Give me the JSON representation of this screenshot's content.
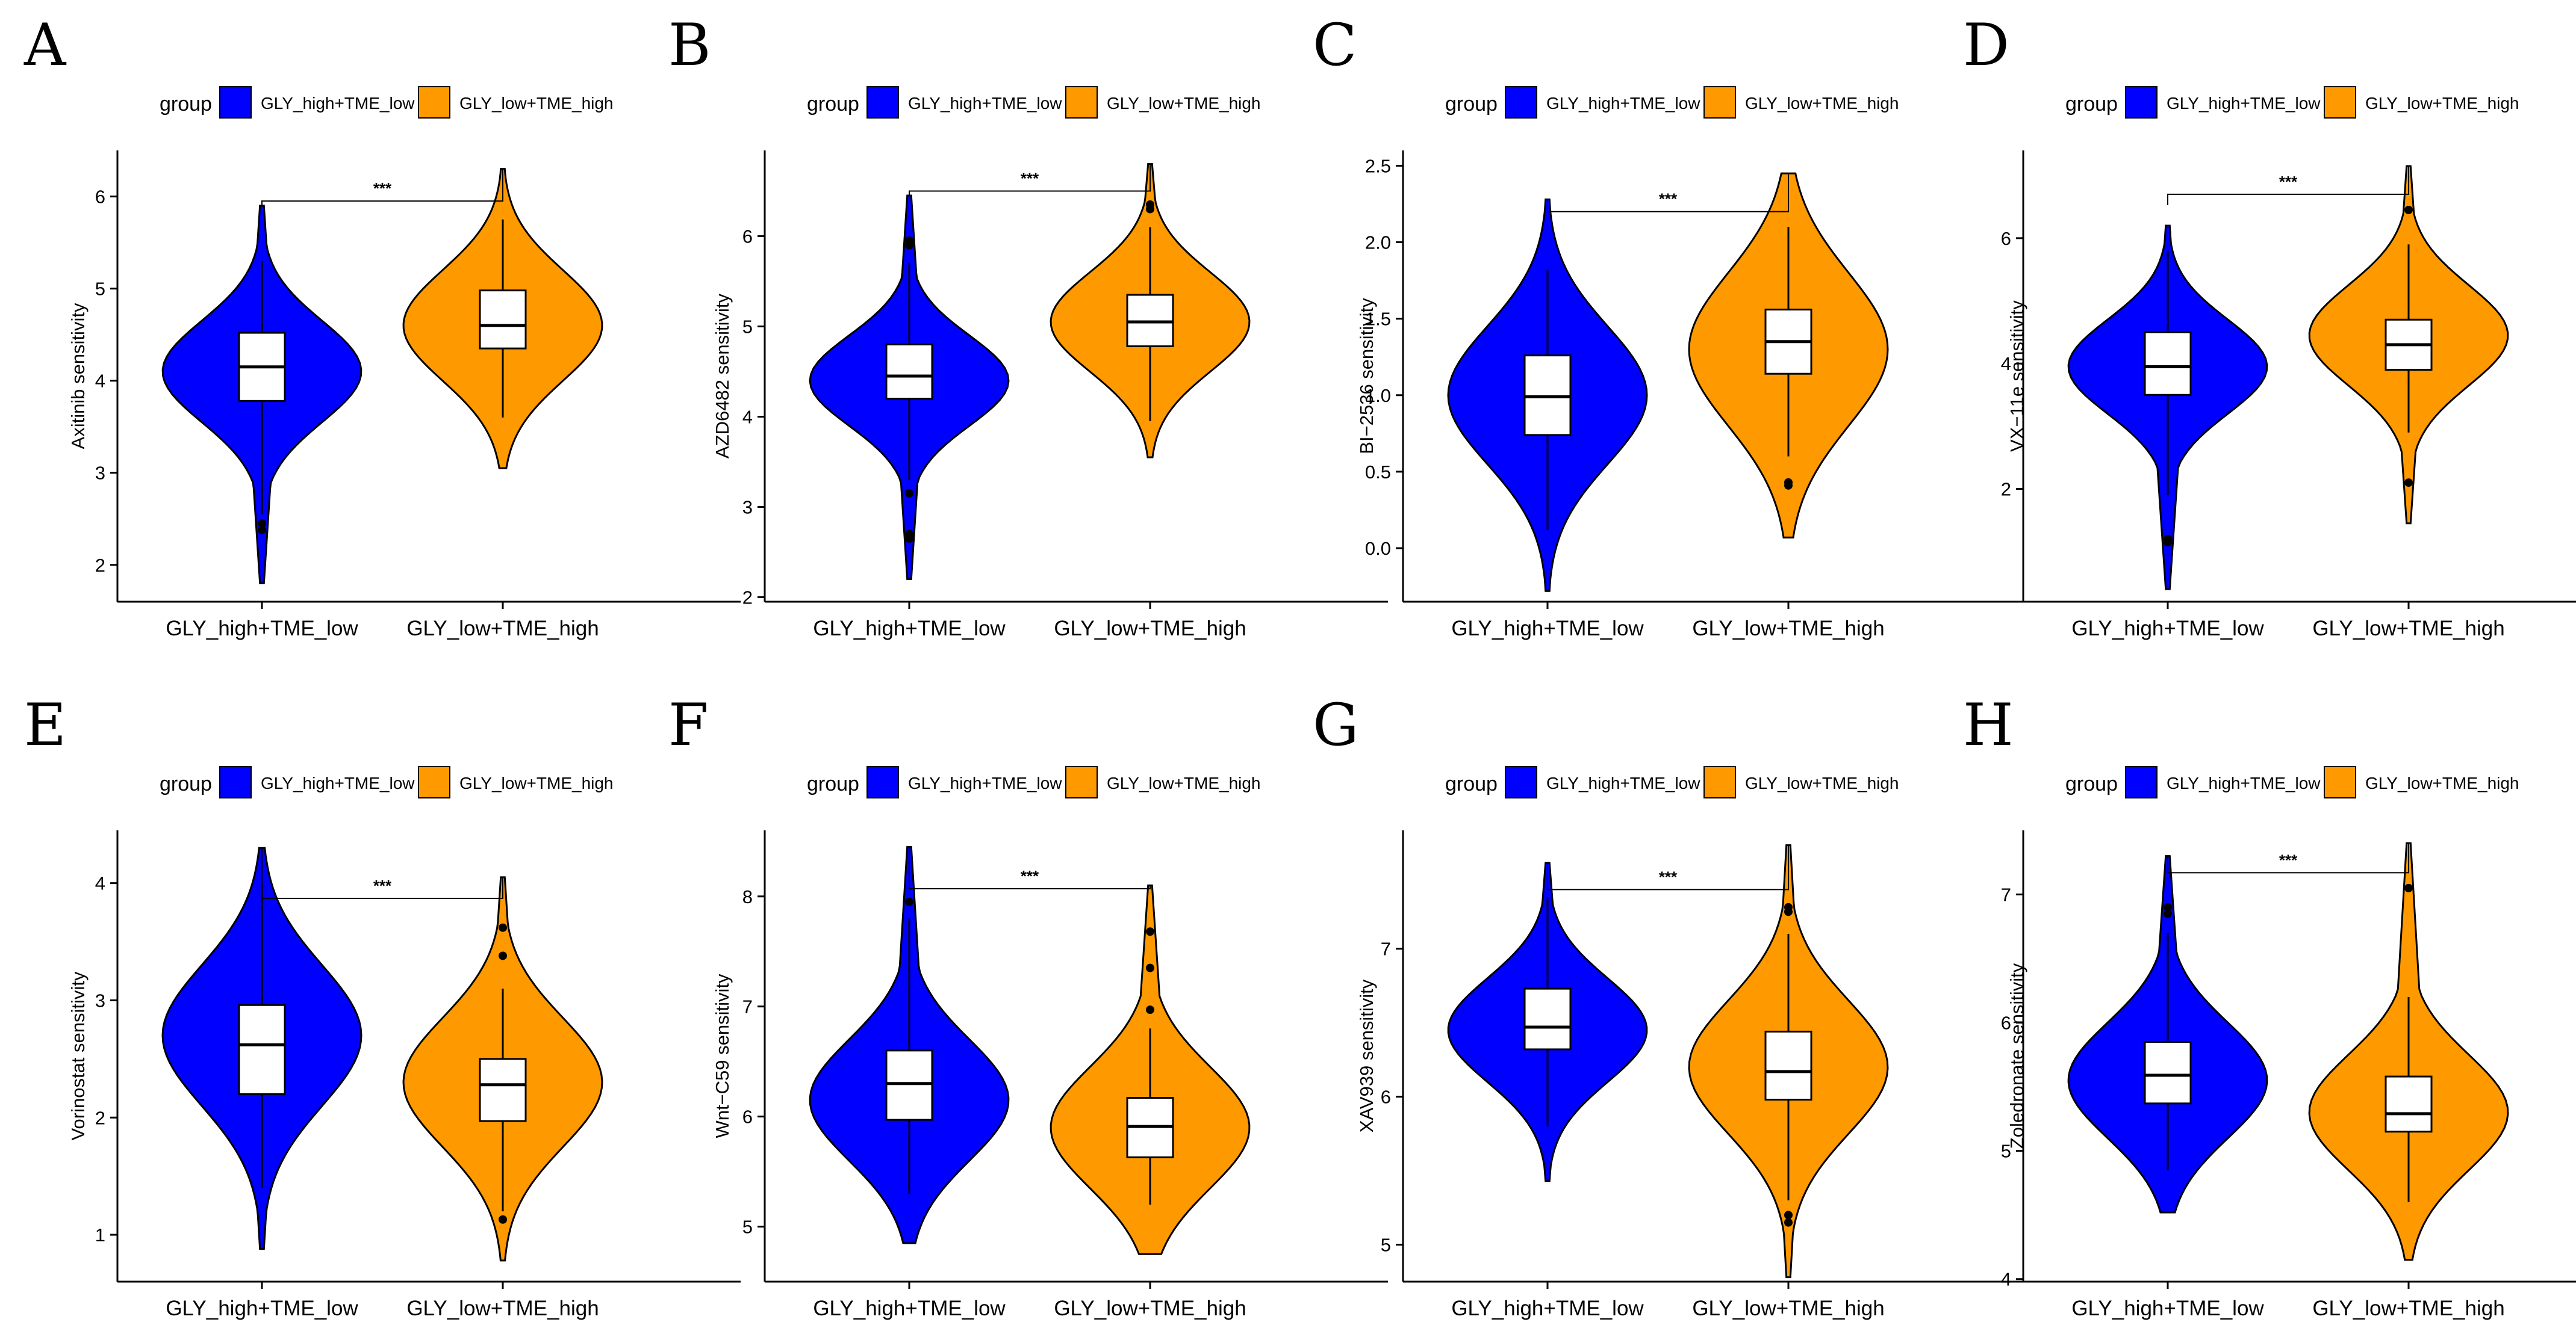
{
  "colors": {
    "GLY_high+TME_low": "#0000ff",
    "GLY_low+TME_high": "#ff9900"
  },
  "chart_data": [
    {
      "panel": "A",
      "type": "violin",
      "categories": [
        "GLY_high+TME_low",
        "GLY_low+TME_high"
      ],
      "legend": {
        "title": "group",
        "entries": [
          "GLY_high+TME_low",
          "GLY_low+TME_high"
        ],
        "position": "top"
      },
      "ylabel": "Axitinib sensitivity",
      "ylim": [
        1.6,
        6.5
      ],
      "yticks": [
        2,
        3,
        4,
        5,
        6
      ],
      "significance": "***",
      "sig_y": 5.95,
      "series": [
        {
          "name": "GLY_high+TME_low",
          "vmin": 1.8,
          "vmax": 5.9,
          "vmode": 4.1,
          "vspread": 0.55,
          "q1": 3.78,
          "median": 4.15,
          "q3": 4.52,
          "wlow": 2.55,
          "whigh": 5.3,
          "outliers": [
            2.45,
            2.38
          ]
        },
        {
          "name": "GLY_low+TME_high",
          "vmin": 3.05,
          "vmax": 6.3,
          "vmode": 4.6,
          "vspread": 0.6,
          "q1": 4.35,
          "median": 4.6,
          "q3": 4.98,
          "wlow": 3.6,
          "whigh": 5.75,
          "outliers": []
        }
      ]
    },
    {
      "panel": "B",
      "type": "violin",
      "categories": [
        "GLY_high+TME_low",
        "GLY_low+TME_high"
      ],
      "legend": {
        "title": "group",
        "entries": [
          "GLY_high+TME_low",
          "GLY_low+TME_high"
        ],
        "position": "top"
      },
      "ylabel": "AZD6482 sensitivity",
      "ylim": [
        1.95,
        6.95
      ],
      "yticks": [
        2,
        3,
        4,
        5,
        6
      ],
      "significance": "***",
      "sig_y": 6.5,
      "series": [
        {
          "name": "GLY_high+TME_low",
          "vmin": 2.2,
          "vmax": 6.45,
          "vmode": 4.4,
          "vspread": 0.5,
          "q1": 4.2,
          "median": 4.45,
          "q3": 4.8,
          "wlow": 3.3,
          "whigh": 5.7,
          "outliers": [
            5.9,
            5.95,
            3.15,
            2.7,
            2.65
          ]
        },
        {
          "name": "GLY_low+TME_high",
          "vmin": 3.55,
          "vmax": 6.8,
          "vmode": 5.05,
          "vspread": 0.55,
          "q1": 4.78,
          "median": 5.05,
          "q3": 5.35,
          "wlow": 3.95,
          "whigh": 6.1,
          "outliers": [
            6.3,
            6.35
          ]
        }
      ]
    },
    {
      "panel": "C",
      "type": "violin",
      "categories": [
        "GLY_high+TME_low",
        "GLY_low+TME_high"
      ],
      "legend": {
        "title": "group",
        "entries": [
          "GLY_high+TME_low",
          "GLY_low+TME_high"
        ],
        "position": "top"
      },
      "ylabel": "BI−2536 sensitivity",
      "ylim": [
        -0.35,
        2.6
      ],
      "yticks": [
        0.0,
        0.5,
        1.0,
        1.5,
        2.0,
        2.5
      ],
      "significance": "***",
      "sig_y": 2.2,
      "series": [
        {
          "name": "GLY_high+TME_low",
          "vmin": -0.28,
          "vmax": 2.28,
          "vmode": 1.0,
          "vspread": 0.45,
          "q1": 0.74,
          "median": 0.99,
          "q3": 1.26,
          "wlow": 0.12,
          "whigh": 1.82,
          "outliers": []
        },
        {
          "name": "GLY_low+TME_high",
          "vmin": 0.07,
          "vmax": 2.45,
          "vmode": 1.3,
          "vspread": 0.5,
          "q1": 1.14,
          "median": 1.35,
          "q3": 1.56,
          "wlow": 0.6,
          "whigh": 2.1,
          "outliers": [
            0.43,
            0.41
          ]
        }
      ]
    },
    {
      "panel": "D",
      "type": "violin",
      "categories": [
        "GLY_high+TME_low",
        "GLY_low+TME_high"
      ],
      "legend": {
        "title": "group",
        "entries": [
          "GLY_high+TME_low",
          "GLY_low+TME_high"
        ],
        "position": "top"
      },
      "ylabel": "VX−11e sensitivity",
      "ylim": [
        0.2,
        7.4
      ],
      "yticks": [
        2,
        4,
        6
      ],
      "significance": "***",
      "sig_y": 6.7,
      "series": [
        {
          "name": "GLY_high+TME_low",
          "vmin": 0.4,
          "vmax": 6.2,
          "vmode": 3.95,
          "vspread": 0.75,
          "q1": 3.5,
          "median": 3.95,
          "q3": 4.5,
          "wlow": 1.9,
          "whigh": 5.8,
          "outliers": [
            1.2,
            1.15
          ]
        },
        {
          "name": "GLY_low+TME_high",
          "vmin": 1.45,
          "vmax": 7.15,
          "vmode": 4.45,
          "vspread": 0.8,
          "q1": 3.9,
          "median": 4.3,
          "q3": 4.7,
          "wlow": 2.9,
          "whigh": 5.9,
          "outliers": [
            2.1,
            6.45
          ]
        }
      ]
    },
    {
      "panel": "E",
      "type": "violin",
      "categories": [
        "GLY_high+TME_low",
        "GLY_low+TME_high"
      ],
      "legend": {
        "title": "group",
        "entries": [
          "GLY_high+TME_low",
          "GLY_low+TME_high"
        ],
        "position": "top"
      },
      "ylabel": "Vorinostat sensitivity",
      "ylim": [
        0.6,
        4.45
      ],
      "yticks": [
        1,
        2,
        3,
        4
      ],
      "significance": "***",
      "sig_y": 3.87,
      "series": [
        {
          "name": "GLY_high+TME_low",
          "vmin": 0.88,
          "vmax": 4.3,
          "vmode": 2.7,
          "vspread": 0.6,
          "q1": 2.2,
          "median": 2.62,
          "q3": 2.96,
          "wlow": 1.4,
          "whigh": 4.0,
          "outliers": []
        },
        {
          "name": "GLY_low+TME_high",
          "vmin": 0.78,
          "vmax": 4.05,
          "vmode": 2.3,
          "vspread": 0.55,
          "q1": 1.97,
          "median": 2.28,
          "q3": 2.5,
          "wlow": 1.2,
          "whigh": 3.1,
          "outliers": [
            3.62,
            3.38,
            1.13
          ]
        }
      ]
    },
    {
      "panel": "F",
      "type": "violin",
      "categories": [
        "GLY_high+TME_low",
        "GLY_low+TME_high"
      ],
      "legend": {
        "title": "group",
        "entries": [
          "GLY_high+TME_low",
          "GLY_low+TME_high"
        ],
        "position": "top"
      },
      "ylabel": "Wnt−C59 sensitivity",
      "ylim": [
        4.5,
        8.6
      ],
      "yticks": [
        5,
        6,
        7,
        8
      ],
      "significance": "***",
      "sig_y": 8.07,
      "series": [
        {
          "name": "GLY_high+TME_low",
          "vmin": 4.85,
          "vmax": 8.45,
          "vmode": 6.15,
          "vspread": 0.55,
          "q1": 5.97,
          "median": 6.3,
          "q3": 6.6,
          "wlow": 5.3,
          "whigh": 7.8,
          "outliers": [
            7.95
          ]
        },
        {
          "name": "GLY_low+TME_high",
          "vmin": 4.75,
          "vmax": 8.1,
          "vmode": 5.9,
          "vspread": 0.55,
          "q1": 5.63,
          "median": 5.91,
          "q3": 6.17,
          "wlow": 5.2,
          "whigh": 6.8,
          "outliers": [
            7.68,
            7.35,
            6.97
          ]
        }
      ]
    },
    {
      "panel": "G",
      "type": "violin",
      "categories": [
        "GLY_high+TME_low",
        "GLY_low+TME_high"
      ],
      "legend": {
        "title": "group",
        "entries": [
          "GLY_high+TME_low",
          "GLY_low+TME_high"
        ],
        "position": "top"
      },
      "ylabel": "XAV939 sensitivity",
      "ylim": [
        4.75,
        7.8
      ],
      "yticks": [
        5,
        6,
        7
      ],
      "significance": "***",
      "sig_y": 7.4,
      "series": [
        {
          "name": "GLY_high+TME_low",
          "vmin": 5.43,
          "vmax": 7.58,
          "vmode": 6.45,
          "vspread": 0.35,
          "q1": 6.32,
          "median": 6.47,
          "q3": 6.73,
          "wlow": 5.8,
          "whigh": 7.35,
          "outliers": []
        },
        {
          "name": "GLY_low+TME_high",
          "vmin": 4.78,
          "vmax": 7.7,
          "vmode": 6.2,
          "vspread": 0.45,
          "q1": 5.98,
          "median": 6.17,
          "q3": 6.44,
          "wlow": 5.3,
          "whigh": 7.1,
          "outliers": [
            7.28,
            7.25,
            5.2,
            5.15
          ]
        }
      ]
    },
    {
      "panel": "H",
      "type": "violin",
      "categories": [
        "GLY_high+TME_low",
        "GLY_low+TME_high"
      ],
      "legend": {
        "title": "group",
        "entries": [
          "GLY_high+TME_low",
          "GLY_low+TME_high"
        ],
        "position": "top"
      },
      "ylabel": "Zoledronate sensitivity",
      "ylim": [
        3.98,
        7.5
      ],
      "yticks": [
        4,
        5,
        6,
        7
      ],
      "significance": "***",
      "sig_y": 7.17,
      "series": [
        {
          "name": "GLY_high+TME_low",
          "vmin": 4.52,
          "vmax": 7.3,
          "vmode": 5.55,
          "vspread": 0.45,
          "q1": 5.37,
          "median": 5.59,
          "q3": 5.85,
          "wlow": 4.85,
          "whigh": 6.7,
          "outliers": [
            6.85,
            6.9
          ]
        },
        {
          "name": "GLY_low+TME_high",
          "vmin": 4.15,
          "vmax": 7.4,
          "vmode": 5.3,
          "vspread": 0.45,
          "q1": 5.15,
          "median": 5.29,
          "q3": 5.58,
          "wlow": 4.6,
          "whigh": 6.2,
          "outliers": [
            7.05
          ]
        }
      ]
    }
  ]
}
